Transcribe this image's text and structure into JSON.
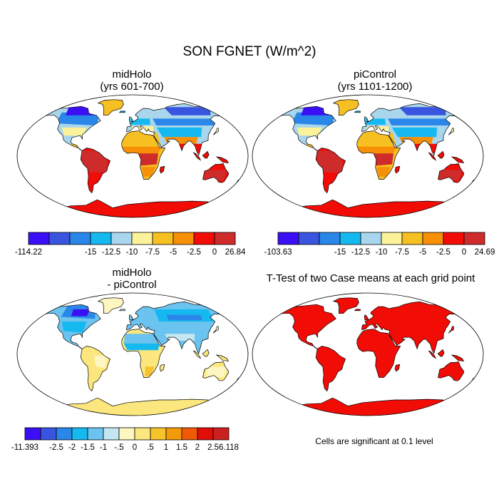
{
  "figure": {
    "title": "SON FGNET (W/m^2)"
  },
  "panels": [
    {
      "id": "midholo",
      "title_line1": "midHolo",
      "title_line2": "(yrs 601-700)",
      "kind": "absolute",
      "colorbar": {
        "colors": [
          "#3b0ff5",
          "#3955e0",
          "#2a86e8",
          "#16b9ef",
          "#a9d6ec",
          "#fbf29a",
          "#f6bf22",
          "#f78f07",
          "#f20c06",
          "#cf2b2b"
        ],
        "labels": [
          "-114.22",
          "-15",
          "-12.5",
          "-10",
          "-7.5",
          "-5",
          "-2.5",
          "0",
          "26.84"
        ]
      }
    },
    {
      "id": "picontrol",
      "title_line1": "piControl",
      "title_line2": "(yrs 1101-1200)",
      "kind": "absolute",
      "colorbar": {
        "colors": [
          "#3b0ff5",
          "#3955e0",
          "#2a86e8",
          "#16b9ef",
          "#a9d6ec",
          "#fbf29a",
          "#f6bf22",
          "#f78f07",
          "#f20c06",
          "#cf2b2b"
        ],
        "labels": [
          "-103.63",
          "-15",
          "-12.5",
          "-10",
          "-7.5",
          "-5",
          "-2.5",
          "0",
          "24.69"
        ]
      }
    },
    {
      "id": "difference",
      "title_line1": "midHolo",
      "title_line2": "- piControl",
      "kind": "difference",
      "colorbar": {
        "colors": [
          "#3b0ff5",
          "#3955e0",
          "#2a86e8",
          "#16b9ef",
          "#6bc3ef",
          "#c3e6f2",
          "#fef6c0",
          "#fbe77d",
          "#f7c32a",
          "#f39a08",
          "#f05a06",
          "#e00e06",
          "#cc2020"
        ],
        "labels": [
          "-11.393",
          "-2.5",
          "-2",
          "-1.5",
          "-1",
          "-.5",
          "0",
          ".5",
          "1",
          "1.5",
          "2",
          "2.5",
          "6.118"
        ]
      }
    },
    {
      "id": "ttest",
      "title_line1": "T-Test of two Case means at each grid point",
      "kind": "significance",
      "note": "Cells are significant at 0.1 level"
    }
  ],
  "colors": {
    "significant": "#f20c06",
    "ocean": "#ffffff",
    "coast": "#000000"
  }
}
